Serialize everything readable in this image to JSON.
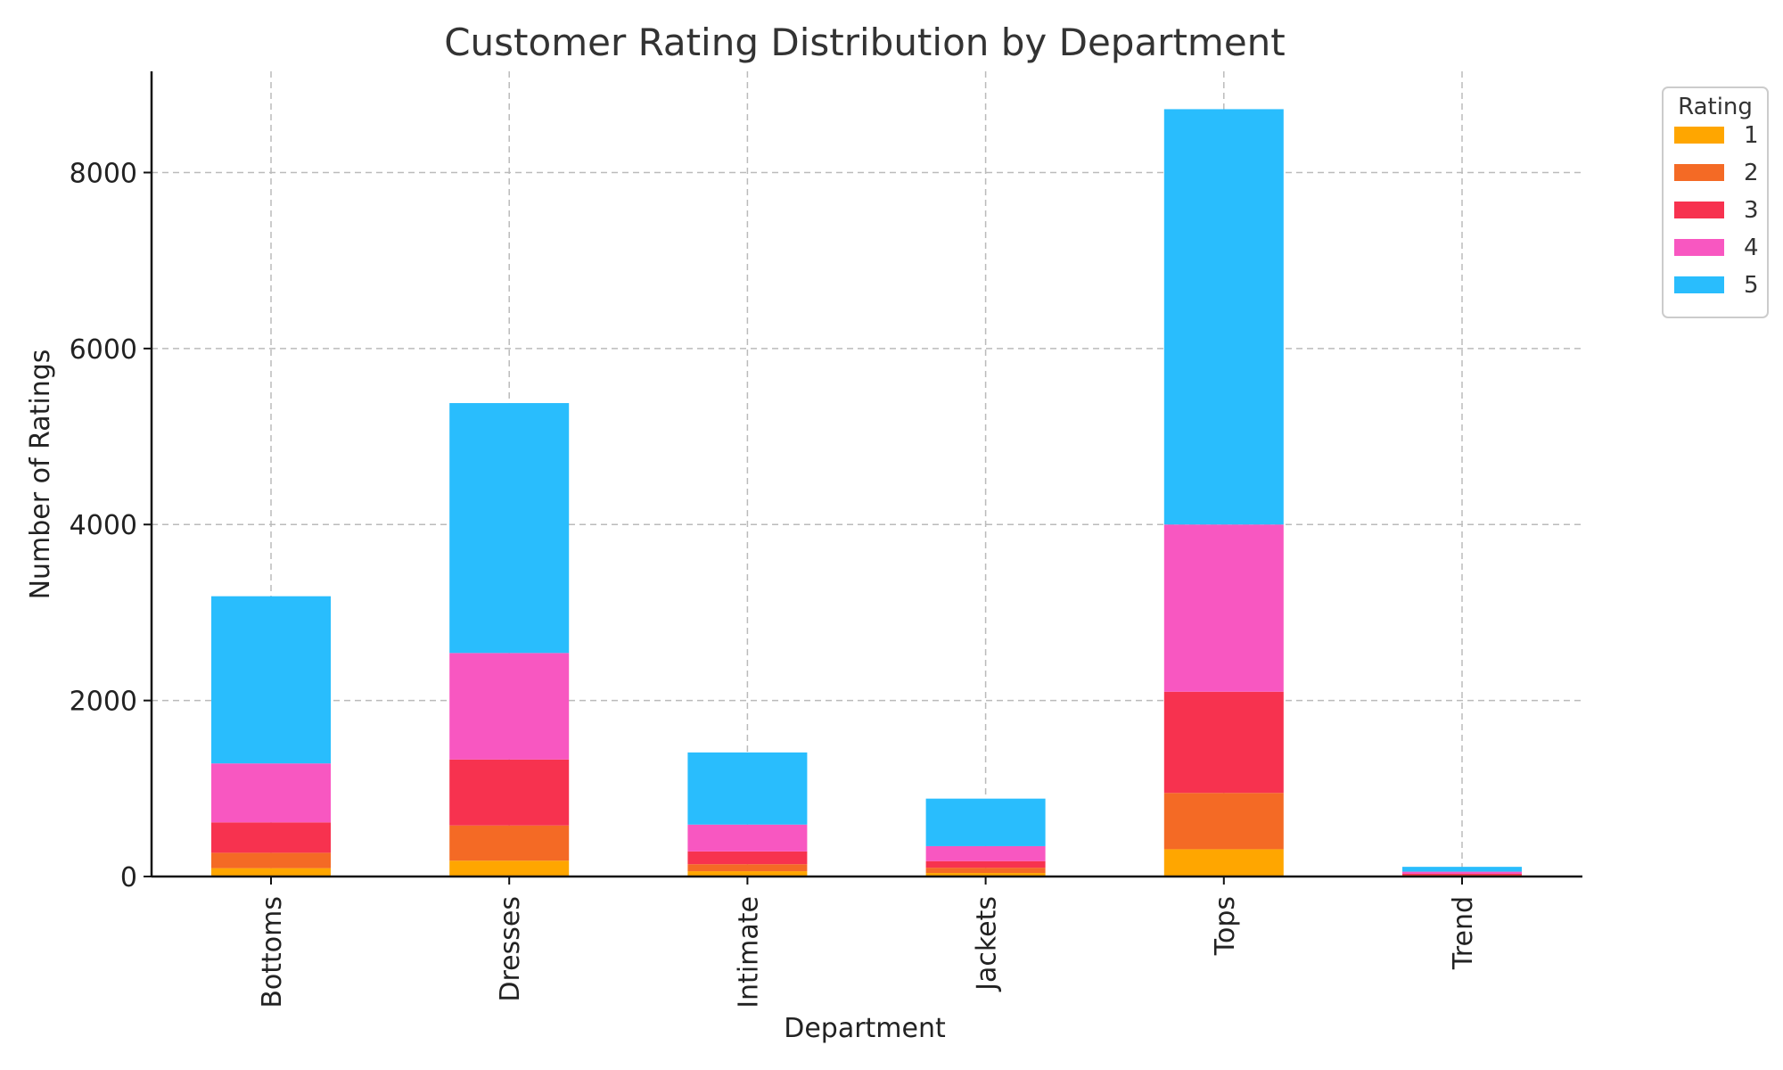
{
  "chart_data": {
    "type": "bar",
    "stacked": true,
    "title": "Customer Rating Distribution by Department",
    "xlabel": "Department",
    "ylabel": "Number of Ratings",
    "categories": [
      "Bottoms",
      "Dresses",
      "Intimate",
      "Jackets",
      "Tops",
      "Trend"
    ],
    "ylim": [
      0,
      9150
    ],
    "yticks": [
      0,
      2000,
      4000,
      6000,
      8000
    ],
    "grid": true,
    "legend": {
      "title": "Rating",
      "position": "outside-top-right"
    },
    "series": [
      {
        "name": "1",
        "color": "#FFA600",
        "values": [
          95,
          180,
          60,
          40,
          310,
          5
        ]
      },
      {
        "name": "2",
        "color": "#F46A25",
        "values": [
          175,
          400,
          80,
          60,
          640,
          10
        ]
      },
      {
        "name": "3",
        "color": "#F7324F",
        "values": [
          345,
          750,
          145,
          75,
          1150,
          15
        ]
      },
      {
        "name": "4",
        "color": "#F857C1",
        "values": [
          670,
          1210,
          305,
          170,
          1900,
          25
        ]
      },
      {
        "name": "5",
        "color": "#29BDFD",
        "values": [
          1900,
          2840,
          820,
          540,
          4720,
          55
        ]
      }
    ]
  }
}
